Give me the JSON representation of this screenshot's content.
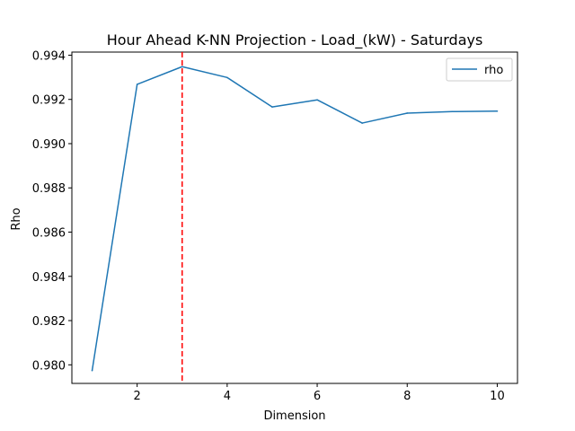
{
  "chart_data": {
    "type": "line",
    "title": "Hour Ahead K-NN Projection - Load_(kW) - Saturdays",
    "xlabel": "Dimension",
    "ylabel": "Rho",
    "xlim": [
      0.55,
      10.45
    ],
    "ylim": [
      0.97916,
      0.99414
    ],
    "xticks": [
      2,
      4,
      6,
      8,
      10
    ],
    "xtick_labels": [
      "2",
      "4",
      "6",
      "8",
      "10"
    ],
    "yticks": [
      0.98,
      0.982,
      0.984,
      0.986,
      0.988,
      0.99,
      0.992,
      0.994
    ],
    "ytick_labels": [
      "0.980",
      "0.982",
      "0.984",
      "0.986",
      "0.988",
      "0.990",
      "0.992",
      "0.994"
    ],
    "series": [
      {
        "name": "rho",
        "color": "#1f77b4",
        "x": [
          1,
          2,
          3,
          4,
          5,
          6,
          7,
          8,
          9,
          10
        ],
        "values": [
          0.97974,
          0.99268,
          0.99348,
          0.99299,
          0.99166,
          0.99198,
          0.99093,
          0.99138,
          0.99145,
          0.99147
        ]
      }
    ],
    "vline": {
      "x": 3,
      "color": "#ff0000",
      "style": "dashed"
    },
    "legend": {
      "position": "top-right",
      "entries": [
        "rho"
      ]
    },
    "grid": false
  }
}
